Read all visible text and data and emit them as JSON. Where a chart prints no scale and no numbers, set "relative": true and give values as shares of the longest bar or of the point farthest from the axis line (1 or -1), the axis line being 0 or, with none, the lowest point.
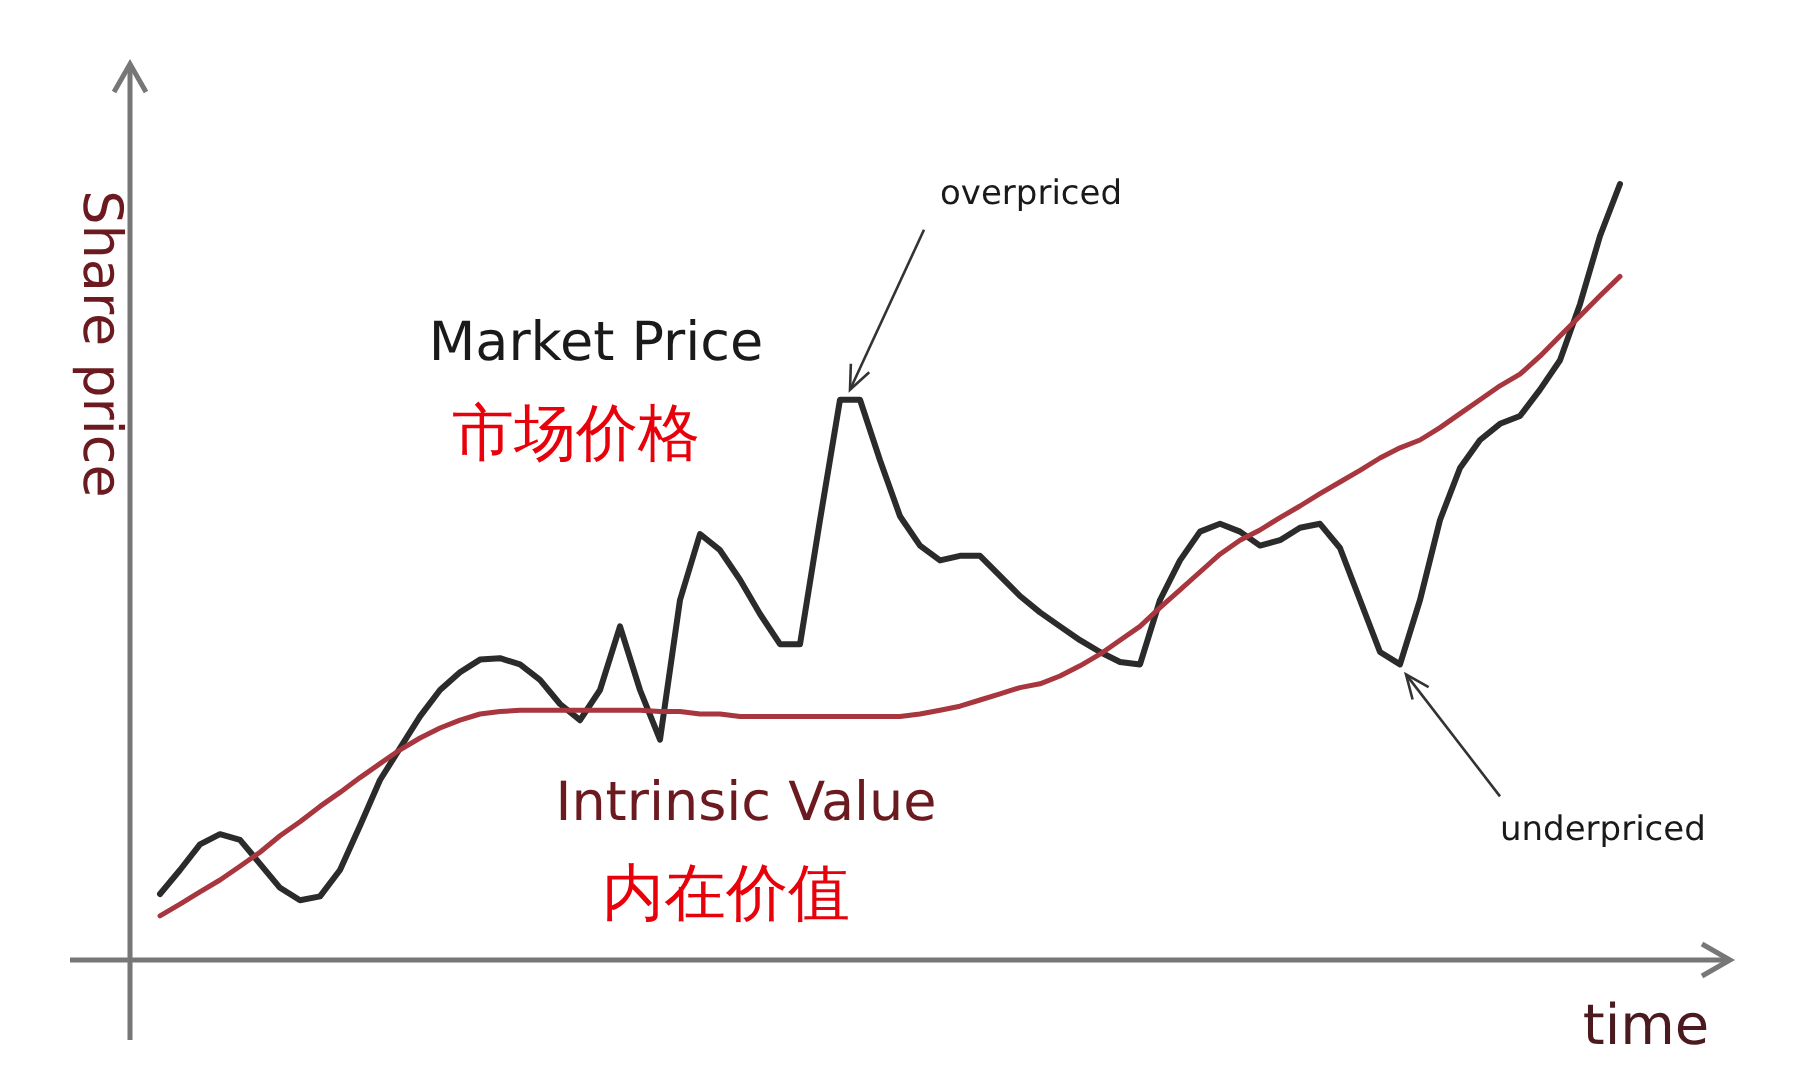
{
  "chart_data": {
    "type": "line",
    "relative": true,
    "xlabel": "time",
    "ylabel": "Share price",
    "categories": [
      null,
      null,
      null,
      null,
      null,
      null,
      null,
      null,
      null,
      null,
      null,
      null,
      null,
      null,
      null,
      null,
      null,
      null,
      null,
      null,
      null,
      null,
      null,
      null,
      null,
      null,
      null,
      null,
      null,
      null,
      null,
      null,
      null,
      null,
      null,
      null,
      null,
      null,
      null,
      null,
      null,
      null,
      null,
      null,
      null,
      null,
      null,
      null,
      null,
      null,
      null,
      null,
      null,
      null,
      null,
      null,
      null,
      null,
      null,
      null,
      null,
      null,
      null,
      null,
      null,
      null,
      null,
      null,
      null,
      null,
      null,
      null,
      null,
      null
    ],
    "series": [
      {
        "name": "Market Price",
        "color": "#2b2b2b",
        "values": [
          0.085,
          0.116,
          0.149,
          0.162,
          0.155,
          0.124,
          0.093,
          0.077,
          0.082,
          0.116,
          0.173,
          0.232,
          0.273,
          0.314,
          0.348,
          0.371,
          0.387,
          0.389,
          0.381,
          0.361,
          0.33,
          0.309,
          0.348,
          0.43,
          0.348,
          0.284,
          0.464,
          0.549,
          0.528,
          0.49,
          0.446,
          0.407,
          0.407,
          0.567,
          0.722,
          0.722,
          0.644,
          0.572,
          0.534,
          0.515,
          0.521,
          0.521,
          0.495,
          0.469,
          0.448,
          0.43,
          0.412,
          0.397,
          0.384,
          0.381,
          0.464,
          0.515,
          0.552,
          0.562,
          0.552,
          0.534,
          0.541,
          0.557,
          0.562,
          0.531,
          0.464,
          0.397,
          0.381,
          0.464,
          0.567,
          0.634,
          0.67,
          0.691,
          0.701,
          0.735,
          0.773,
          0.845,
          0.933,
          1
        ]
      },
      {
        "name": "Intrinsic Value",
        "color": "#a8363e",
        "values": [
          0.057,
          0.072,
          0.088,
          0.103,
          0.121,
          0.139,
          0.16,
          0.178,
          0.198,
          0.216,
          0.235,
          0.253,
          0.271,
          0.286,
          0.299,
          0.309,
          0.317,
          0.32,
          0.322,
          0.322,
          0.322,
          0.322,
          0.322,
          0.322,
          0.322,
          0.32,
          0.32,
          0.317,
          0.317,
          0.314,
          0.314,
          0.314,
          0.314,
          0.314,
          0.314,
          0.314,
          0.314,
          0.314,
          0.317,
          0.322,
          0.327,
          0.335,
          0.343,
          0.351,
          0.356,
          0.366,
          0.379,
          0.394,
          0.412,
          0.43,
          0.454,
          0.477,
          0.5,
          0.523,
          0.541,
          0.554,
          0.57,
          0.585,
          0.601,
          0.616,
          0.631,
          0.647,
          0.66,
          0.67,
          0.686,
          0.704,
          0.722,
          0.74,
          0.755,
          0.778,
          0.804,
          0.83,
          0.856,
          0.881
        ]
      }
    ],
    "annotations": [
      "市场价格",
      "内在价值",
      "overpriced",
      "underpriced"
    ]
  }
}
